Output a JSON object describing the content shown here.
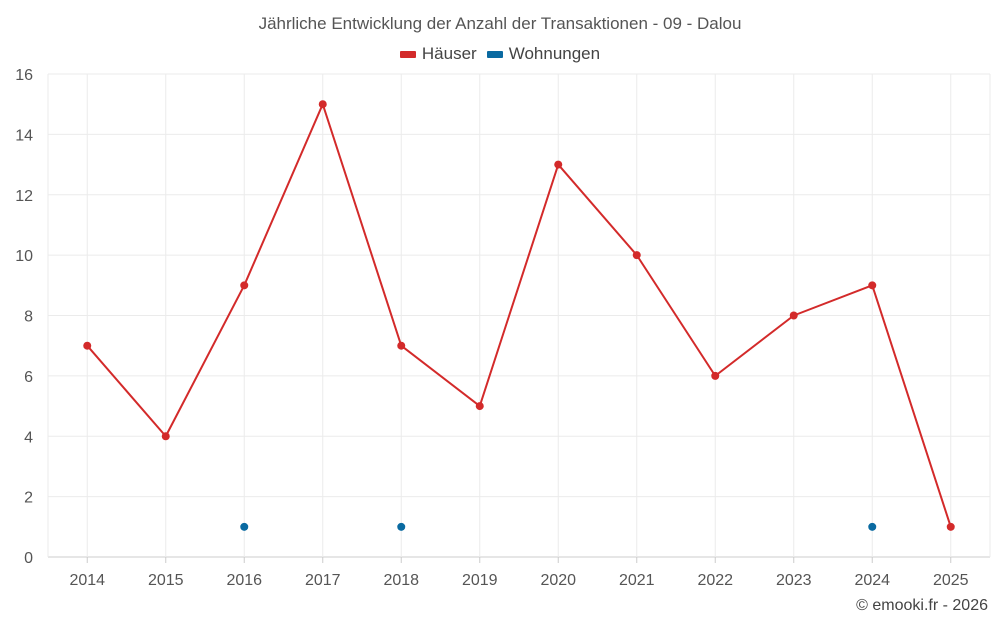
{
  "chart_data": {
    "type": "line",
    "title": "Jährliche Entwicklung der Anzahl der Transaktionen - 09 - Dalou",
    "categories": [
      "2014",
      "2015",
      "2016",
      "2017",
      "2018",
      "2019",
      "2020",
      "2021",
      "2022",
      "2023",
      "2024",
      "2025"
    ],
    "ylim": [
      0,
      16
    ],
    "yticks": [
      0,
      2,
      4,
      6,
      8,
      10,
      12,
      14,
      16
    ],
    "grid": true,
    "legend_position": "top-center",
    "series": [
      {
        "name": "Häuser",
        "color": "#d32a2a",
        "style": "line-markers",
        "values": [
          7,
          4,
          9,
          15,
          7,
          5,
          13,
          10,
          6,
          8,
          9,
          1
        ]
      },
      {
        "name": "Wohnungen",
        "color": "#0a6aa1",
        "style": "markers",
        "values": [
          null,
          null,
          1,
          null,
          1,
          null,
          null,
          null,
          null,
          null,
          1,
          null
        ]
      }
    ]
  },
  "credit": "© emooki.fr - 2026"
}
